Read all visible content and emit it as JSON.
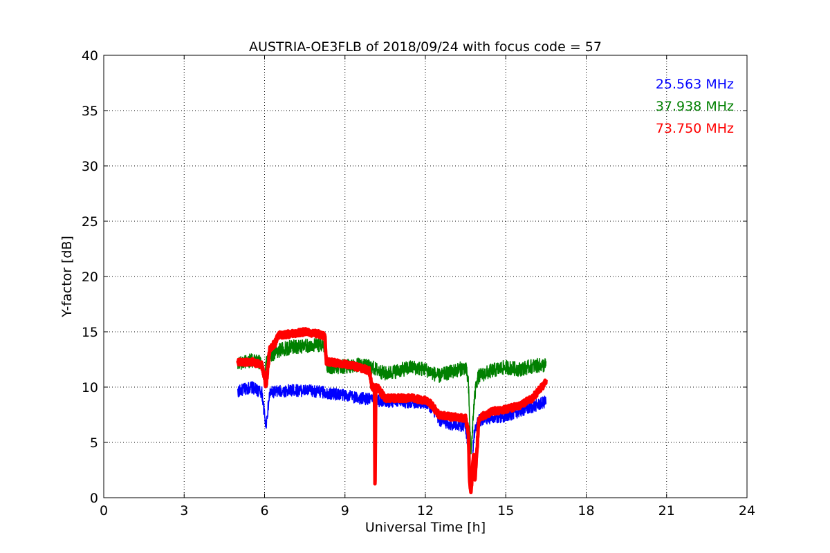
{
  "chart_data": {
    "type": "line",
    "title": "AUSTRIA-OE3FLB of 2018/09/24 with focus code = 57",
    "xlabel": "Universal Time [h]",
    "ylabel": "Y-factor [dB]",
    "xlim": [
      0,
      24
    ],
    "ylim": [
      0,
      40
    ],
    "xticks": [
      0,
      3,
      6,
      9,
      12,
      15,
      18,
      21,
      24
    ],
    "yticks": [
      0,
      5,
      10,
      15,
      20,
      25,
      30,
      35,
      40
    ],
    "grid": true,
    "legend_position": "top-right",
    "series": [
      {
        "name": "25.563 MHz",
        "color": "#0000ff",
        "noise": 0.55,
        "x": [
          5.0,
          5.5,
          5.9,
          6.0,
          6.05,
          6.2,
          6.5,
          7.0,
          7.5,
          8.0,
          8.3,
          8.5,
          9.0,
          9.5,
          10.0,
          10.2,
          10.5,
          11.0,
          11.5,
          12.0,
          12.3,
          12.5,
          13.0,
          13.5,
          13.65,
          13.7,
          13.75,
          13.8,
          13.9,
          14.0,
          14.5,
          15.0,
          15.5,
          16.0,
          16.5
        ],
        "y": [
          9.6,
          10.0,
          9.5,
          7.5,
          6.5,
          9.5,
          9.6,
          9.7,
          9.7,
          9.6,
          9.5,
          9.4,
          9.3,
          9.0,
          8.9,
          8.8,
          8.7,
          8.7,
          8.6,
          8.6,
          8.0,
          7.0,
          6.6,
          6.5,
          3.5,
          1.0,
          2.0,
          5.5,
          6.5,
          7.0,
          7.2,
          7.4,
          7.8,
          8.2,
          8.7
        ]
      },
      {
        "name": "37.938 MHz",
        "color": "#008000",
        "noise": 0.65,
        "x": [
          5.0,
          5.5,
          5.9,
          6.0,
          6.05,
          6.2,
          6.5,
          7.0,
          7.5,
          8.0,
          8.25,
          8.3,
          8.5,
          9.0,
          9.5,
          10.0,
          10.5,
          11.0,
          11.5,
          12.0,
          12.5,
          13.0,
          13.5,
          13.6,
          13.7,
          13.8,
          13.9,
          14.0,
          14.5,
          15.0,
          15.5,
          16.0,
          16.5
        ],
        "y": [
          12.2,
          12.4,
          12.2,
          11.0,
          12.0,
          12.8,
          13.3,
          13.6,
          13.7,
          13.8,
          13.8,
          12.0,
          11.8,
          11.9,
          12.0,
          11.8,
          11.2,
          11.5,
          11.8,
          11.6,
          11.0,
          11.4,
          11.8,
          10.5,
          3.8,
          8.0,
          10.5,
          11.0,
          11.5,
          11.8,
          11.6,
          11.9,
          12.0
        ]
      },
      {
        "name": "73.750 MHz",
        "color": "#ff0000",
        "noise": 0.3,
        "x": [
          5.0,
          5.5,
          5.9,
          6.0,
          6.05,
          6.2,
          6.4,
          6.5,
          7.0,
          7.5,
          8.0,
          8.25,
          8.3,
          9.0,
          9.5,
          9.9,
          10.0,
          10.1,
          10.12,
          10.15,
          10.2,
          10.5,
          11.0,
          11.5,
          12.0,
          12.2,
          12.5,
          13.0,
          13.5,
          13.6,
          13.65,
          13.7,
          13.8,
          13.85,
          14.0,
          14.5,
          15.0,
          15.5,
          16.0,
          16.5
        ],
        "y": [
          12.2,
          12.3,
          12.0,
          11.0,
          10.0,
          13.5,
          14.0,
          14.7,
          14.8,
          15.0,
          14.8,
          14.6,
          12.3,
          12.1,
          11.8,
          11.5,
          10.0,
          10.0,
          0.0,
          10.0,
          10.0,
          9.0,
          9.0,
          9.0,
          8.8,
          8.5,
          7.5,
          7.3,
          7.2,
          6.0,
          1.5,
          0.4,
          4.0,
          1.5,
          7.2,
          7.8,
          8.0,
          8.3,
          9.0,
          10.5
        ]
      }
    ]
  }
}
